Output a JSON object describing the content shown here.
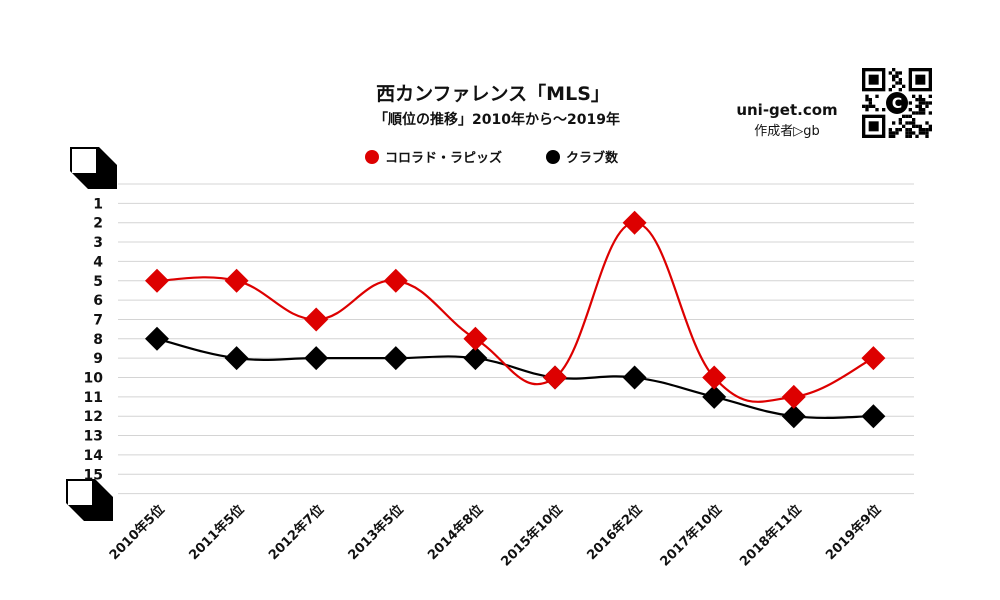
{
  "chart_data": {
    "type": "line",
    "title": "西カンファレンス「MLS」",
    "subtitle": "「順位の推移」2010年から～2019年",
    "categories": [
      "2010年5位",
      "2011年5位",
      "2012年7位",
      "2013年5位",
      "2014年8位",
      "2015年10位",
      "2016年2位",
      "2017年10位",
      "2018年11位",
      "2019年9位"
    ],
    "series": [
      {
        "name": "コロラド・ラピッズ",
        "color": "#dd0000",
        "values": [
          5,
          5,
          7,
          5,
          8,
          10,
          2,
          10,
          11,
          9
        ]
      },
      {
        "name": "クラブ数",
        "color": "#000000",
        "values": [
          8,
          9,
          9,
          9,
          9,
          10,
          10,
          11,
          12,
          12
        ]
      }
    ],
    "y_ticks": [
      "1",
      "2",
      "3",
      "4",
      "5",
      "6",
      "7",
      "8",
      "9",
      "10",
      "11",
      "12",
      "13",
      "14",
      "15"
    ],
    "ylim": [
      15,
      0
    ],
    "y_inverted": true,
    "grid": true,
    "legend_position": "top-center",
    "marker": "diamond",
    "curve": "smooth"
  },
  "branding": {
    "site": "uni-get.com",
    "author": "作成者▷gb",
    "qr_center_letter": "C"
  }
}
